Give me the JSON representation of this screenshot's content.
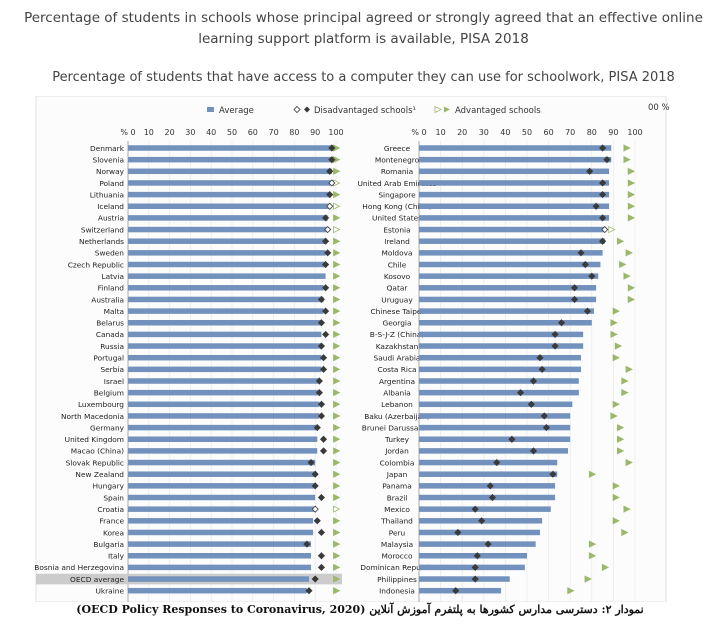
{
  "title_main": "Percentage of students in schools whose principal agreed or strongly agreed that an effective online\nlearning support platform is available, PISA 2018",
  "title_sub": "Percentage of students that have access to a computer they can use for schoolwork, PISA 2018",
  "caption": "نمودار ۲: دسترسی مدارس کشورها به پلتفرم آموزش آنلاین (OECD Policy Responses to Coronavirus, 2020)",
  "overflow_label": "00 %",
  "legend": {
    "average": "Average",
    "disadvantaged": "Disadvantaged schools¹",
    "advantaged": "Advantaged schools"
  },
  "colors": {
    "bar": "#7391bd",
    "dis": "#3a3a3a",
    "adv": "#9bb86a",
    "highlight": "#cccccc"
  },
  "chart_data": {
    "type": "bar",
    "orientation": "horizontal",
    "xlim": [
      0,
      100
    ],
    "ticks": [
      "% 0",
      "10",
      "20",
      "30",
      "40",
      "50",
      "60",
      "70",
      "80",
      "90",
      "100"
    ],
    "panels": [
      {
        "categories": [
          "Denmark",
          "Slovenia",
          "Norway",
          "Poland",
          "Lithuania",
          "Iceland",
          "Austria",
          "Switzerland",
          "Netherlands",
          "Sweden",
          "Czech Republic",
          "Latvia",
          "Finland",
          "Australia",
          "Malta",
          "Belarus",
          "Canada",
          "Russia",
          "Portugal",
          "Serbia",
          "Israel",
          "Belgium",
          "Luxembourg",
          "North Macedonia",
          "Germany",
          "United Kingdom",
          "Macao (China)",
          "Slovak Republic",
          "New Zealand",
          "Hungary",
          "Spain",
          "Croatia",
          "France",
          "Korea",
          "Bulgaria",
          "Italy",
          "Bosnia and Herzegovina",
          "OECD average",
          "Ukraine"
        ],
        "series": [
          {
            "name": "Average",
            "values": [
              99,
              99,
              98,
              98,
              97,
              97,
              96,
              96,
              95,
              95,
              95,
              95,
              94,
              94,
              94,
              93,
              93,
              93,
              93,
              93,
              92,
              92,
              92,
              92,
              91,
              91,
              91,
              90,
              90,
              90,
              90,
              90,
              89,
              89,
              88,
              88,
              88,
              87,
              86
            ]
          },
          {
            "name": "Disadvantaged schools¹",
            "values": [
              98,
              98,
              97,
              null,
              97,
              null,
              95,
              null,
              95,
              96,
              95,
              null,
              95,
              93,
              95,
              93,
              95,
              93,
              94,
              94,
              92,
              92,
              93,
              93,
              91,
              94,
              94,
              88,
              90,
              90,
              93,
              null,
              91,
              93,
              86,
              93,
              93,
              90,
              87
            ]
          },
          {
            "name": "Advantaged schools",
            "values": [
              100,
              100,
              100,
              100,
              100,
              100,
              100,
              100,
              100,
              100,
              100,
              100,
              100,
              100,
              100,
              100,
              100,
              100,
              100,
              100,
              100,
              100,
              100,
              100,
              100,
              100,
              100,
              100,
              100,
              100,
              100,
              100,
              100,
              100,
              100,
              100,
              100,
              100,
              100
            ]
          }
        ],
        "open_markers": [
          "Poland",
          "Iceland",
          "Switzerland",
          "Croatia"
        ],
        "highlight": "OECD average"
      },
      {
        "categories": [
          "Greece",
          "Montenegro",
          "Romania",
          "United Arab Emirates",
          "Singapore",
          "Hong Kong (China)",
          "United States",
          "Estonia",
          "Ireland",
          "Moldova",
          "Chile",
          "Kosovo",
          "Qatar",
          "Uruguay",
          "Chinese Taipei",
          "Georgia",
          "B-S-J-Z (China)",
          "Kazakhstan",
          "Saudi Arabia",
          "Costa Rica",
          "Argentina",
          "Albania",
          "Lebanon",
          "Baku (Azerbaijan)",
          "Brunei Darussalam",
          "Turkey",
          "Jordan",
          "Colombia",
          "Japan",
          "Panama",
          "Brazil",
          "Mexico",
          "Thailand",
          "Peru",
          "Malaysia",
          "Morocco",
          "Dominican Republic",
          "Philippines",
          "Indonesia"
        ],
        "series": [
          {
            "name": "Average",
            "values": [
              89,
              89,
              88,
              88,
              88,
              88,
              88,
              86,
              86,
              85,
              84,
              83,
              82,
              82,
              81,
              80,
              76,
              76,
              75,
              75,
              74,
              74,
              71,
              70,
              70,
              70,
              69,
              64,
              64,
              63,
              63,
              61,
              57,
              56,
              54,
              50,
              49,
              42,
              38
            ]
          },
          {
            "name": "Disadvantaged schools¹",
            "values": [
              85,
              87,
              79,
              85,
              85,
              82,
              85,
              null,
              85,
              75,
              77,
              80,
              72,
              72,
              78,
              66,
              63,
              63,
              56,
              57,
              53,
              47,
              52,
              58,
              59,
              43,
              53,
              36,
              62,
              33,
              34,
              26,
              29,
              18,
              32,
              27,
              26,
              26,
              17
            ]
          },
          {
            "name": "Advantaged schools",
            "values": [
              96,
              96,
              98,
              98,
              98,
              98,
              98,
              89,
              93,
              97,
              94,
              96,
              98,
              98,
              91,
              90,
              90,
              92,
              91,
              97,
              95,
              95,
              91,
              90,
              93,
              93,
              93,
              97,
              80,
              91,
              91,
              96,
              91,
              95,
              80,
              80,
              86,
              78,
              70
            ]
          }
        ],
        "open_markers": [
          "Estonia"
        ],
        "highlight": ""
      }
    ]
  }
}
